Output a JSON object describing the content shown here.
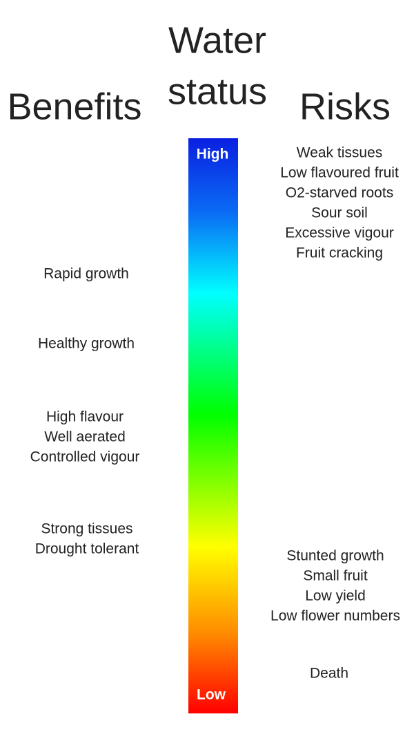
{
  "header": {
    "title_lines": [
      "Water",
      "status"
    ],
    "left_heading": "Benefits",
    "right_heading": "Risks"
  },
  "scale": {
    "top_label": "High",
    "bottom_label": "Low"
  },
  "benefits": [
    [
      "Rapid growth"
    ],
    [
      "Healthy growth"
    ],
    [
      "High flavour",
      "Well aerated",
      "Controlled vigour"
    ],
    [
      "Strong tissues",
      "Drought tolerant"
    ]
  ],
  "risks": [
    [
      "Weak tissues",
      "Low flavoured fruit",
      "O2-starved roots",
      "Sour soil",
      "Excessive vigour",
      "Fruit cracking"
    ],
    [
      "Stunted growth",
      "Small fruit",
      "Low yield",
      "Low flower numbers"
    ],
    [
      "Death"
    ]
  ]
}
